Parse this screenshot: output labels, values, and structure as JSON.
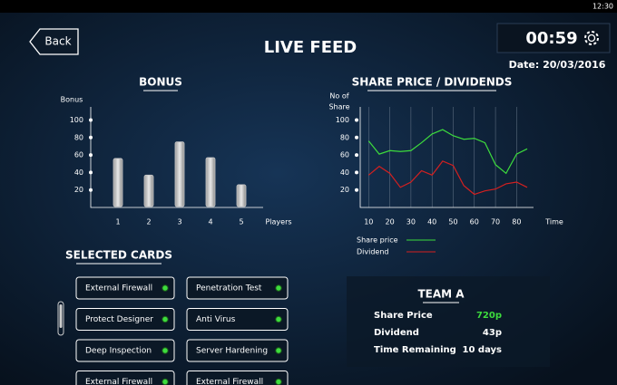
{
  "status_bar": {
    "time": "12:30"
  },
  "header": {
    "back": "Back",
    "title": "LIVE FEED",
    "timer": "00:59",
    "date": "Date: 20/03/2016"
  },
  "chart_data": [
    {
      "type": "bar",
      "title": "BONUS",
      "y_label": "Bonus",
      "x_label": "Players",
      "categories": [
        "1",
        "2",
        "3",
        "4",
        "5"
      ],
      "values": [
        56,
        37,
        75,
        57,
        26
      ],
      "color": "#c8c8c8",
      "ylim": [
        0,
        115
      ],
      "yticks": [
        20,
        40,
        60,
        80,
        100
      ]
    },
    {
      "type": "line",
      "title": "SHARE PRICE / DIVIDENDS",
      "y_label": [
        "No of",
        "Share"
      ],
      "x_label": "Time",
      "x": [
        10,
        15,
        20,
        25,
        30,
        35,
        40,
        45,
        50,
        55,
        60,
        65,
        70,
        75,
        80,
        85
      ],
      "series": [
        {
          "name": "Share price",
          "color": "#3ddc3d",
          "values": [
            76,
            61,
            65,
            64,
            65,
            74,
            84,
            89,
            82,
            78,
            79,
            74,
            49,
            39,
            61,
            67
          ]
        },
        {
          "name": "Dividend",
          "color": "#d42020",
          "values": [
            37,
            47,
            39,
            23,
            29,
            42,
            37,
            53,
            48,
            25,
            15,
            19,
            21,
            27,
            29,
            23
          ]
        }
      ],
      "xlim": [
        6,
        88
      ],
      "ylim": [
        0,
        115
      ],
      "xticks": [
        10,
        20,
        30,
        40,
        50,
        60,
        70,
        80
      ],
      "yticks": [
        20,
        40,
        60,
        80,
        100
      ],
      "grid": true
    }
  ],
  "selected_cards": {
    "title": "SELECTED CARDS",
    "cards": [
      "External Firewall",
      "Penetration Test",
      "Protect Designer",
      "Anti Virus",
      "Deep Inspection",
      "Server Hardening",
      "External Firewall",
      "External Firewall"
    ]
  },
  "team": {
    "title": "TEAM A",
    "rows": [
      [
        "Share Price",
        "720p"
      ],
      [
        "Dividend",
        "43p"
      ],
      [
        "Time Remaining",
        "10 days"
      ]
    ]
  }
}
